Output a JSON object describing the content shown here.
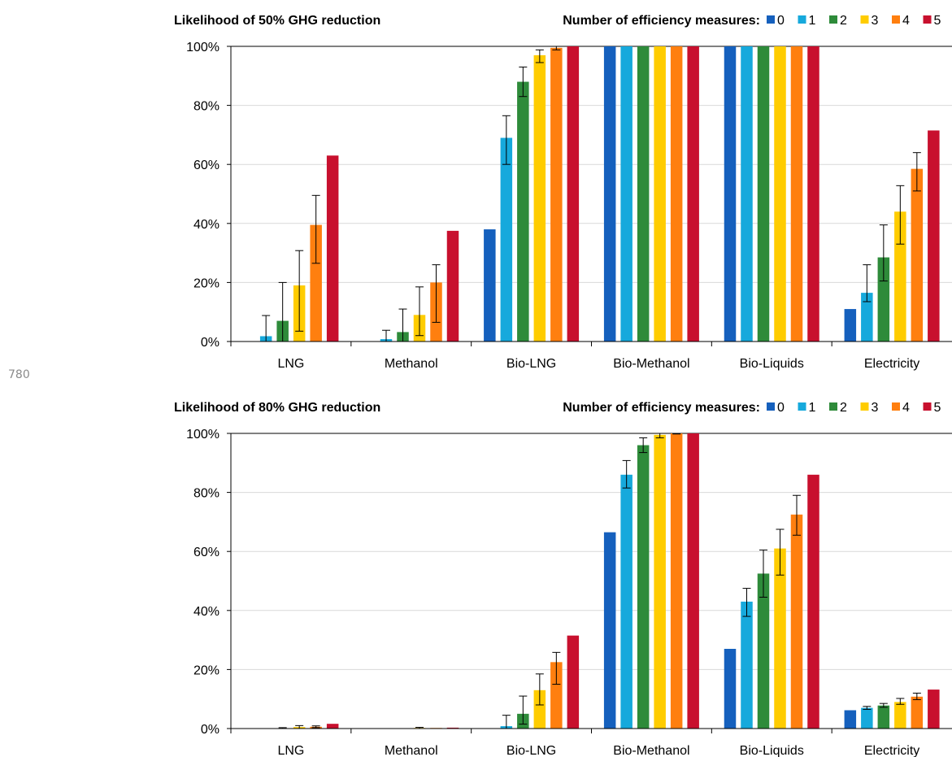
{
  "page_number": "780",
  "colors": [
    "#1560BD",
    "#16A9DC",
    "#2E8B3A",
    "#FFCC00",
    "#FF7F0F",
    "#C8102E"
  ],
  "chart_data": [
    {
      "type": "bar",
      "title": "Likelihood of 50% GHG reduction",
      "legend_title": "Number of efficiency measures:",
      "legend_placement": "top-right",
      "ylim": [
        0,
        100
      ],
      "yticks": [
        "0%",
        "20%",
        "40%",
        "60%",
        "80%",
        "100%"
      ],
      "grid": true,
      "categories": [
        "LNG",
        "Methanol",
        "Bio-LNG",
        "Bio-Methanol",
        "Bio-Liquids",
        "Electricity"
      ],
      "series": [
        {
          "name": "0",
          "values": [
            0,
            0,
            38,
            100,
            100,
            11
          ]
        },
        {
          "name": "1",
          "values": [
            1.8,
            0.8,
            69,
            100,
            100,
            16.5
          ]
        },
        {
          "name": "2",
          "values": [
            7,
            3.2,
            88,
            100,
            100,
            28.5
          ]
        },
        {
          "name": "3",
          "values": [
            19,
            9,
            97,
            100,
            100,
            44
          ]
        },
        {
          "name": "4",
          "values": [
            39.5,
            20,
            99.5,
            100,
            100,
            58.5
          ]
        },
        {
          "name": "5",
          "values": [
            63,
            37.5,
            100,
            100,
            100,
            71.5
          ]
        }
      ],
      "error_bars": [
        [
          null,
          null,
          null,
          null,
          null,
          null
        ],
        [
          [
            0,
            8.8
          ],
          [
            0,
            3.8
          ],
          [
            60,
            76.5
          ],
          null,
          null,
          [
            13.5,
            26
          ]
        ],
        [
          [
            0,
            20
          ],
          [
            0,
            11
          ],
          [
            83,
            93
          ],
          null,
          null,
          [
            20.5,
            39.5
          ]
        ],
        [
          [
            3.5,
            30.8
          ],
          [
            2,
            18.5
          ],
          [
            94.5,
            98.8
          ],
          null,
          null,
          [
            33,
            52.8
          ]
        ],
        [
          [
            26.5,
            49.5
          ],
          [
            6.5,
            26
          ],
          [
            98.8,
            100
          ],
          null,
          null,
          [
            51,
            64
          ]
        ],
        [
          null,
          null,
          null,
          null,
          null,
          null
        ]
      ]
    },
    {
      "type": "bar",
      "title": "Likelihood of 80% GHG reduction",
      "legend_title": "Number of efficiency measures:",
      "legend_placement": "top-right",
      "ylim": [
        0,
        100
      ],
      "yticks": [
        "0%",
        "20%",
        "40%",
        "60%",
        "80%",
        "100%"
      ],
      "grid": true,
      "categories": [
        "LNG",
        "Methanol",
        "Bio-LNG",
        "Bio-Methanol",
        "Bio-Liquids",
        "Electricity"
      ],
      "series": [
        {
          "name": "0",
          "values": [
            0,
            0,
            0,
            66.5,
            27,
            6.2
          ]
        },
        {
          "name": "1",
          "values": [
            0,
            0,
            0.8,
            86,
            43,
            7
          ]
        },
        {
          "name": "2",
          "values": [
            0.1,
            0.05,
            5,
            96,
            52.5,
            7.8
          ]
        },
        {
          "name": "3",
          "values": [
            0.5,
            0.2,
            13,
            99.5,
            61,
            9
          ]
        },
        {
          "name": "4",
          "values": [
            0.6,
            0.2,
            22.5,
            100,
            72.5,
            10.8
          ]
        },
        {
          "name": "5",
          "values": [
            1.6,
            0.3,
            31.5,
            100,
            86,
            13.2
          ]
        }
      ],
      "error_bars": [
        [
          null,
          null,
          null,
          null,
          null,
          null
        ],
        [
          null,
          null,
          [
            0,
            4.5
          ],
          [
            81.5,
            90.8
          ],
          [
            38,
            47.5
          ],
          [
            6.5,
            7.5
          ]
        ],
        [
          [
            0,
            0.3
          ],
          null,
          [
            1.5,
            11
          ],
          [
            93.5,
            98.5
          ],
          [
            44.5,
            60.5
          ],
          [
            7.2,
            8.5
          ]
        ],
        [
          [
            0,
            1
          ],
          [
            0,
            0.4
          ],
          [
            8,
            18.5
          ],
          [
            98.5,
            100
          ],
          [
            52,
            67.5
          ],
          [
            8.2,
            10.2
          ]
        ],
        [
          [
            0.3,
            0.9
          ],
          null,
          [
            15,
            25.8
          ],
          [
            99.8,
            100
          ],
          [
            65.5,
            79
          ],
          [
            9.8,
            12
          ]
        ],
        [
          null,
          null,
          null,
          null,
          null,
          null
        ]
      ]
    }
  ]
}
